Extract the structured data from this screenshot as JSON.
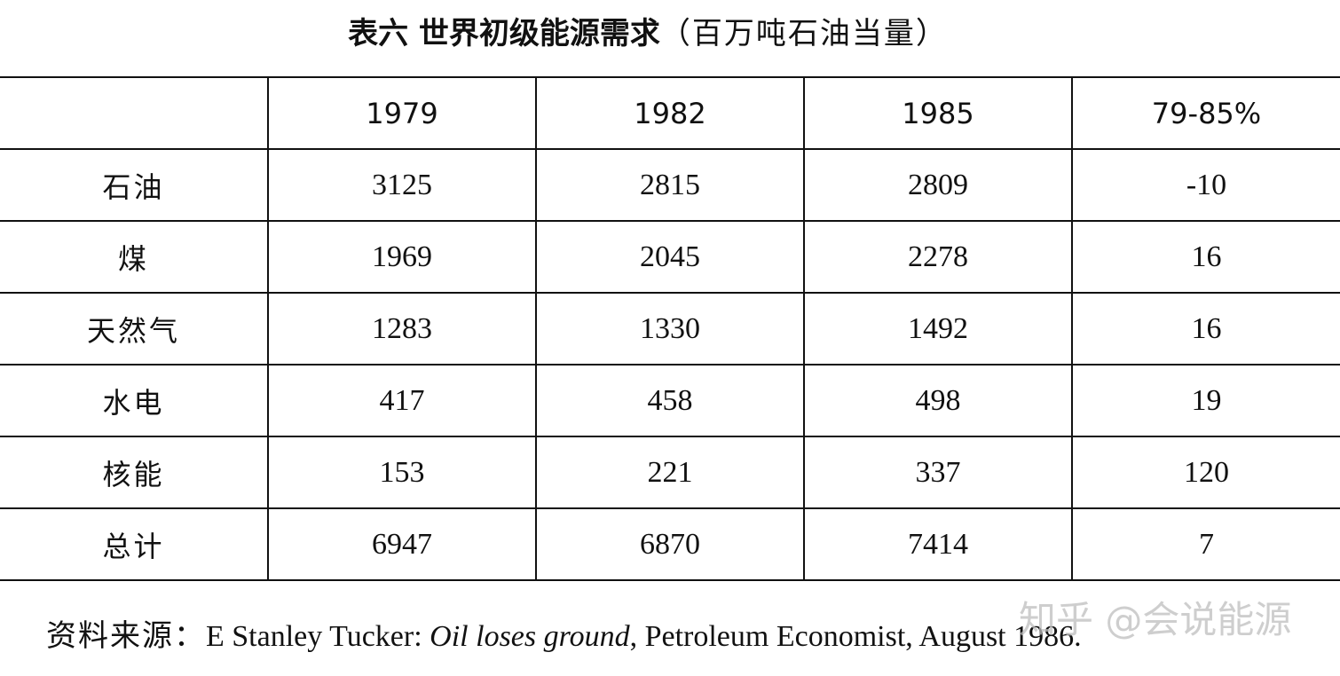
{
  "title": {
    "main": "表六 世界初级能源需求",
    "unit": "（百万吨石油当量）"
  },
  "table": {
    "headers": [
      "",
      "1979",
      "1982",
      "1985",
      "79-85%"
    ],
    "rows": [
      {
        "label": "石油",
        "values": [
          "3125",
          "2815",
          "2809",
          "-10"
        ]
      },
      {
        "label": "煤",
        "values": [
          "1969",
          "2045",
          "2278",
          "16"
        ]
      },
      {
        "label": "天然气",
        "values": [
          "1283",
          "1330",
          "1492",
          "16"
        ]
      },
      {
        "label": "水电",
        "values": [
          "417",
          "458",
          "498",
          "19"
        ]
      },
      {
        "label": "核能",
        "values": [
          "153",
          "221",
          "337",
          "120"
        ]
      },
      {
        "label": "总计",
        "values": [
          "6947",
          "6870",
          "7414",
          "7"
        ]
      }
    ]
  },
  "source": {
    "label": "资料来源：",
    "author": "E Stanley Tucker: ",
    "article": "Oil loses ground",
    "publication": ", Petroleum Economist, August 1986."
  },
  "watermark": "知乎 @会说能源",
  "colors": {
    "text": "#111111",
    "border": "#111111",
    "background": "#ffffff",
    "watermark": "#bebebe"
  }
}
